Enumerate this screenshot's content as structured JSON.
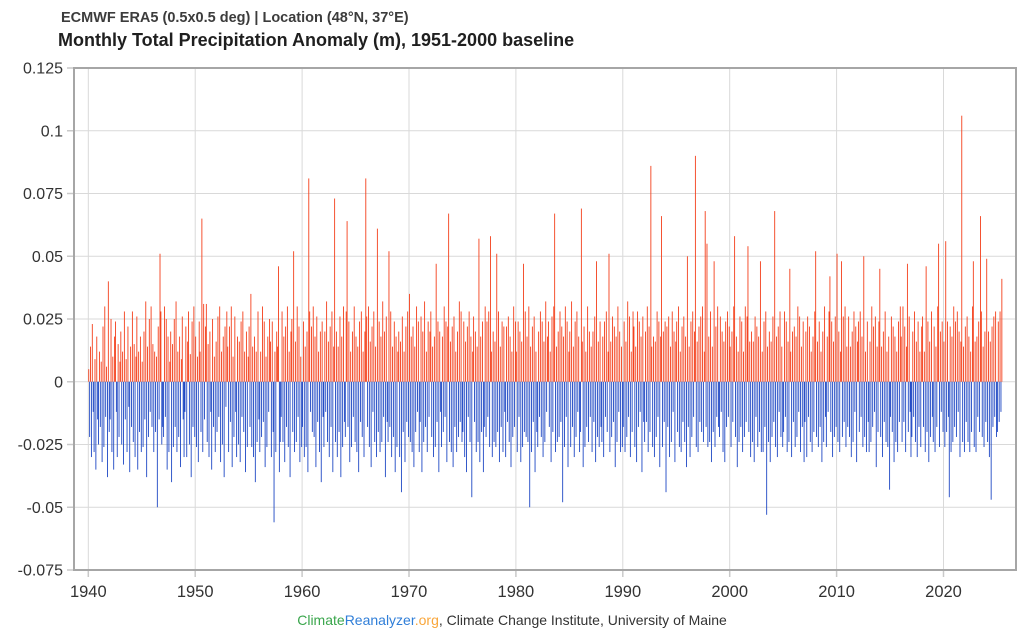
{
  "header": {
    "subtitle": "ECMWF ERA5 (0.5x0.5 deg) | Location (48°N, 37°E)",
    "title": "Monthly Total Precipitation Anomaly (m), 1951-2000 baseline"
  },
  "footer": {
    "climate": "Climate",
    "reanalyzer": "Reanalyzer",
    "org": ".org",
    "credit": ", Climate Change Institute, University of Maine",
    "climate_color": "#3aa64c",
    "reanalyzer_color": "#2f7ed8",
    "org_color": "#f9a63a"
  },
  "chart_data": {
    "type": "bar",
    "title": "Monthly Total Precipitation Anomaly (m), 1951-2000 baseline",
    "subtitle": "ECMWF ERA5 (0.5x0.5 deg) | Location (48°N, 37°E)",
    "ylabel": "",
    "xlabel": "",
    "unit": "0.001 m per value (monthly total precipitation anomaly)",
    "start_month": "1940-01",
    "end_month": "2025-06",
    "ylim": [
      -0.075,
      0.125
    ],
    "xlim": [
      1938.5,
      2026.8
    ],
    "grid": true,
    "legend": "none",
    "positive_color": "#f4401c",
    "negative_color": "#1f48c4",
    "grid_color": "#d9d9d9",
    "border_color": "#a6a6a6",
    "tick_color": "#c9c9c9",
    "ytick_values": [
      0.125,
      0.1,
      0.075,
      0.05,
      0.025,
      0,
      -0.025,
      -0.05,
      -0.075
    ],
    "ytick_labels": [
      "0.125",
      "0.1",
      "0.075",
      "0.05",
      "0.025",
      "0",
      "-0.025",
      "-0.05",
      "-0.075"
    ],
    "xtick_values": [
      1940,
      1950,
      1960,
      1970,
      1980,
      1990,
      2000,
      2010,
      2020
    ],
    "xtick_labels": [
      "1940",
      "1950",
      "1960",
      "1970",
      "1980",
      "1990",
      "2000",
      "2010",
      "2020"
    ],
    "values_milli_m": [
      5,
      -22,
      14,
      -30,
      23,
      -12,
      -28,
      9,
      -35,
      18,
      -15,
      -25,
      12,
      -18,
      8,
      -32,
      22,
      -26,
      30,
      -14,
      6,
      -38,
      40,
      -20,
      -15,
      25,
      -28,
      10,
      -35,
      18,
      24,
      -12,
      -30,
      15,
      -22,
      8,
      20,
      -25,
      12,
      -33,
      28,
      -15,
      9,
      -28,
      22,
      -10,
      -36,
      14,
      -18,
      28,
      -24,
      15,
      -30,
      10,
      26,
      -35,
      12,
      -20,
      18,
      -28,
      8,
      -26,
      20,
      -15,
      32,
      -38,
      14,
      -22,
      25,
      -12,
      30,
      -18,
      15,
      -28,
      12,
      -20,
      10,
      -50,
      22,
      -15,
      51,
      28,
      -25,
      -18,
      -22,
      30,
      -14,
      25,
      -35,
      18,
      -28,
      8,
      20,
      -40,
      15,
      -26,
      25,
      -18,
      32,
      -28,
      12,
      -22,
      18,
      -34,
      9,
      26,
      -15,
      -30,
      -12,
      22,
      -30,
      16,
      28,
      -25,
      11,
      -38,
      24,
      -18,
      30,
      -22,
      18,
      -26,
      10,
      -32,
      24,
      12,
      -20,
      65,
      -28,
      31,
      -15,
      22,
      31,
      -24,
      15,
      -30,
      20,
      -12,
      -35,
      25,
      -18,
      10,
      -28,
      16,
      -20,
      26,
      -14,
      30,
      -32,
      12,
      -25,
      18,
      -38,
      22,
      -10,
      28,
      14,
      -28,
      22,
      -16,
      30,
      -34,
      10,
      -22,
      26,
      -12,
      -30,
      18,
      -25,
      16,
      -32,
      24,
      -14,
      28,
      -20,
      12,
      -36,
      20,
      -26,
      10,
      22,
      -18,
      35,
      -26,
      14,
      -30,
      18,
      -40,
      12,
      -24,
      28,
      -15,
      -28,
      12,
      -22,
      30,
      -16,
      24,
      -34,
      10,
      -26,
      18,
      -12,
      25,
      16,
      -30,
      24,
      -20,
      -56,
      12,
      -28,
      20,
      14,
      46,
      -36,
      -24,
      -14,
      28,
      -24,
      18,
      -32,
      22,
      -18,
      30,
      -26,
      12,
      -38,
      20,
      25,
      -20,
      52,
      -28,
      16,
      -24,
      30,
      -14,
      22,
      -32,
      10,
      -26,
      -18,
      24,
      -30,
      14,
      -26,
      20,
      -36,
      81,
      28,
      -12,
      22,
      -20,
      30,
      -22,
      18,
      -34,
      26,
      -16,
      12,
      -28,
      20,
      -40,
      24,
      -14,
      -26,
      20,
      -12,
      32,
      -24,
      16,
      -30,
      22,
      -18,
      28,
      -36,
      14,
      73,
      -24,
      20,
      -30,
      14,
      -20,
      26,
      -38,
      18,
      -26,
      30,
      -16,
      -22,
      28,
      64,
      -18,
      24,
      -32,
      12,
      -26,
      20,
      -14,
      30,
      -24,
      18,
      -28,
      14,
      -36,
      24,
      -16,
      28,
      -22,
      12,
      -30,
      20,
      81,
      26,
      -18,
      30,
      -26,
      16,
      -34,
      22,
      -12,
      28,
      -24,
      14,
      -30,
      61,
      -20,
      24,
      -28,
      18,
      -24,
      32,
      -14,
      20,
      -38,
      26,
      -16,
      -24,
      52,
      -18,
      28,
      -30,
      14,
      -22,
      24,
      -36,
      18,
      -26,
      12,
      20,
      -30,
      16,
      -44,
      26,
      -20,
      12,
      -32,
      22,
      -16,
      28,
      -22,
      35,
      -24,
      18,
      -28,
      22,
      -34,
      14,
      -20,
      30,
      -12,
      24,
      -28,
      -16,
      26,
      -36,
      20,
      -24,
      32,
      -18,
      12,
      -28,
      24,
      -14,
      20,
      28,
      -22,
      14,
      -30,
      18,
      -26,
      47,
      -16,
      24,
      -36,
      20,
      -12,
      -26,
      18,
      -20,
      30,
      -14,
      24,
      -32,
      22,
      67,
      -24,
      16,
      -28,
      22,
      -34,
      26,
      -18,
      12,
      -28,
      20,
      -22,
      32,
      -16,
      28,
      -24,
      -20,
      24,
      -30,
      16,
      -36,
      22,
      -14,
      28,
      -24,
      18,
      -46,
      12,
      26,
      -16,
      20,
      -28,
      14,
      -24,
      57,
      -32,
      18,
      -20,
      24,
      -36,
      -18,
      30,
      -22,
      24,
      -14,
      28,
      -26,
      58,
      12,
      -30,
      20,
      -24,
      16,
      -26,
      51,
      -20,
      28,
      -32,
      14,
      -18,
      24,
      -28,
      22,
      -12,
      -30,
      22,
      -16,
      26,
      -24,
      18,
      -34,
      12,
      -22,
      30,
      -18,
      24,
      12,
      -28,
      24,
      -14,
      20,
      -32,
      16,
      -26,
      47,
      -20,
      28,
      -22,
      18,
      -24,
      30,
      -50,
      14,
      -28,
      22,
      -16,
      26,
      -36,
      12,
      -20,
      -26,
      20,
      -14,
      28,
      -22,
      24,
      -30,
      16,
      -24,
      32,
      -12,
      18,
      24,
      -18,
      12,
      -32,
      26,
      -20,
      30,
      67,
      -28,
      14,
      -24,
      20,
      -22,
      28,
      -16,
      22,
      -48,
      18,
      -26,
      30,
      -14,
      24,
      -34,
      12,
      20,
      -26,
      32,
      -18,
      14,
      -30,
      24,
      -22,
      28,
      -12,
      18,
      -28,
      -20,
      69,
      16,
      -34,
      22,
      -26,
      12,
      -18,
      30,
      -24,
      20,
      -14,
      14,
      -28,
      20,
      -16,
      26,
      -32,
      48,
      -22,
      16,
      -26,
      24,
      -18,
      -24,
      18,
      -30,
      24,
      -14,
      28,
      -20,
      12,
      51,
      -28,
      16,
      -22,
      26,
      -16,
      22,
      -34,
      18,
      -24,
      30,
      -12,
      20,
      -28,
      14,
      -26,
      -18,
      24,
      -28,
      16,
      -22,
      32,
      -14,
      26,
      -30,
      12,
      -20,
      28,
      22,
      -26,
      14,
      -32,
      28,
      -18,
      24,
      -12,
      18,
      -36,
      26,
      -16,
      -24,
      20,
      -16,
      30,
      -28,
      22,
      -20,
      86,
      14,
      -26,
      18,
      -30,
      16,
      -22,
      28,
      -14,
      24,
      -34,
      18,
      66,
      -26,
      20,
      -16,
      24,
      -44,
      22,
      -18,
      26,
      -30,
      14,
      -24,
      28,
      -12,
      20,
      -32,
      16,
      24,
      -20,
      30,
      -26,
      12,
      -28,
      22,
      -16,
      26,
      -24,
      18,
      -34,
      50,
      -18,
      14,
      -30,
      24,
      -22,
      28,
      -14,
      20,
      90,
      -26,
      16,
      -28,
      22,
      -16,
      26,
      -20,
      30,
      -24,
      12,
      68,
      -18,
      55,
      -26,
      18,
      -24,
      28,
      -32,
      14,
      -20,
      48,
      -26,
      22,
      -14,
      30,
      -18,
      -22,
      26,
      -12,
      20,
      -28,
      16,
      -32,
      24,
      -18,
      28,
      -14,
      22,
      14,
      -26,
      20,
      -16,
      30,
      58,
      -22,
      18,
      -34,
      12,
      -24,
      26,
      -18,
      24,
      -28,
      12,
      -22,
      30,
      -16,
      26,
      54,
      -20,
      16,
      -30,
      20,
      -24,
      16,
      -32,
      26,
      -14,
      22,
      -26,
      18,
      -20,
      48,
      -28,
      12,
      -28,
      24,
      -18,
      28,
      -53,
      14,
      -24,
      20,
      -32,
      16,
      -22,
      26,
      -16,
      68,
      -26,
      18,
      -30,
      22,
      -12,
      28,
      -22,
      14,
      -26,
      -20,
      28,
      -14,
      24,
      -28,
      16,
      -24,
      45,
      12,
      -30,
      20,
      -16,
      22,
      -26,
      18,
      -22,
      30,
      -12,
      26,
      -28,
      14,
      -18,
      24,
      -32,
      -16,
      20,
      -30,
      26,
      -14,
      22,
      -24,
      12,
      -28,
      18,
      -20,
      28,
      52,
      -22,
      16,
      -26,
      24,
      -18,
      12,
      -32,
      20,
      -24,
      30,
      -14,
      -26,
      18,
      -12,
      28,
      42,
      -20,
      24,
      -30,
      16,
      -22,
      26,
      -18,
      51,
      -24,
      20,
      -28,
      12,
      48,
      -22,
      26,
      -16,
      30,
      -26,
      14,
      -18,
      26,
      -22,
      14,
      -30,
      20,
      -24,
      28,
      -12,
      22,
      -32,
      16,
      24,
      -20,
      28,
      -14,
      18,
      -26,
      50,
      -22,
      12,
      -28,
      24,
      -16,
      -28,
      16,
      -24,
      30,
      -18,
      22,
      -12,
      26,
      -34,
      14,
      -20,
      24,
      45,
      -22,
      14,
      -30,
      20,
      -16,
      28,
      -24,
      12,
      -26,
      18,
      -43,
      -14,
      26,
      -20,
      22,
      -32,
      18,
      -24,
      12,
      -28,
      24,
      -16,
      30,
      18,
      -24,
      30,
      -16,
      22,
      -28,
      14,
      47,
      -20,
      26,
      -12,
      -30,
      -22,
      20,
      -14,
      28,
      -24,
      16,
      -30,
      24,
      -18,
      12,
      -26,
      22,
      26,
      -18,
      12,
      -28,
      46,
      -20,
      24,
      -32,
      16,
      -22,
      28,
      -14,
      -24,
      22,
      -28,
      14,
      -18,
      30,
      55,
      -26,
      20,
      -12,
      24,
      -20,
      16,
      -26,
      56,
      -20,
      24,
      -14,
      -46,
      22,
      -28,
      18,
      -24,
      30,
      -18,
      24,
      -22,
      28,
      -12,
      20,
      -30,
      16,
      106,
      -24,
      14,
      -28,
      22,
      -16,
      26,
      -24,
      18,
      -28,
      12,
      -20,
      30,
      48,
      -26,
      16,
      -28,
      18,
      -14,
      24,
      -20,
      66,
      28,
      -22,
      14,
      -26,
      20,
      -16,
      49,
      -24,
      20,
      -30,
      16,
      -47,
      22,
      -18,
      26,
      -14,
      28,
      -22,
      -20,
      24,
      -16,
      28,
      -12,
      41
    ]
  }
}
